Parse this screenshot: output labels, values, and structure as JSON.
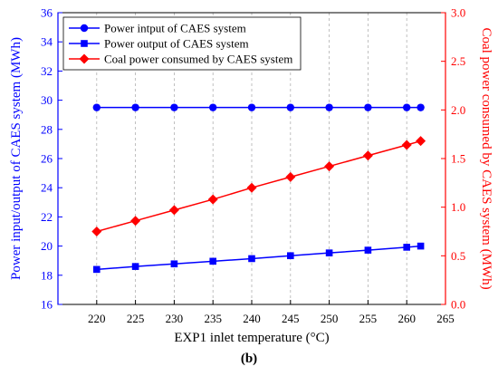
{
  "caption": "(b)",
  "chart_data": {
    "type": "line",
    "xlabel": "EXP1 inlet temperature (°C)",
    "ylabel_left": "Power input/output of CAES system (MWh)",
    "ylabel_right": "Coal power consumed by CAES system (MWh)",
    "xlim": [
      215,
      265
    ],
    "ylim_left": [
      16,
      36
    ],
    "ylim_right": [
      0.0,
      3.0
    ],
    "x_ticks": [
      "220",
      "225",
      "230",
      "235",
      "240",
      "245",
      "250",
      "255",
      "260",
      "265"
    ],
    "y_left_ticks": [
      "16",
      "18",
      "20",
      "22",
      "24",
      "26",
      "28",
      "30",
      "32",
      "34",
      "36"
    ],
    "y_right_ticks": [
      "0.0",
      "0.5",
      "1.0",
      "1.5",
      "2.0",
      "2.5",
      "3.0"
    ],
    "grid": "vertical dashed",
    "legend_position": "top-left",
    "x": [
      220,
      225,
      230,
      235,
      240,
      245,
      250,
      255,
      260,
      261.8
    ],
    "series": [
      {
        "name": "Power intput of CAES system",
        "axis": "left",
        "color": "#0000ff",
        "marker": "circle",
        "values": [
          29.5,
          29.5,
          29.5,
          29.5,
          29.5,
          29.5,
          29.5,
          29.5,
          29.5,
          29.5
        ]
      },
      {
        "name": "Power output of CAES system",
        "axis": "left",
        "color": "#0000ff",
        "marker": "square",
        "values": [
          18.4,
          18.6,
          18.78,
          18.96,
          19.14,
          19.34,
          19.53,
          19.72,
          19.92,
          20.0
        ]
      },
      {
        "name": "Coal power consumed by CAES system",
        "axis": "right",
        "color": "#ff0000",
        "marker": "diamond",
        "values": [
          0.75,
          0.86,
          0.97,
          1.08,
          1.2,
          1.31,
          1.42,
          1.53,
          1.64,
          1.68
        ]
      }
    ]
  }
}
